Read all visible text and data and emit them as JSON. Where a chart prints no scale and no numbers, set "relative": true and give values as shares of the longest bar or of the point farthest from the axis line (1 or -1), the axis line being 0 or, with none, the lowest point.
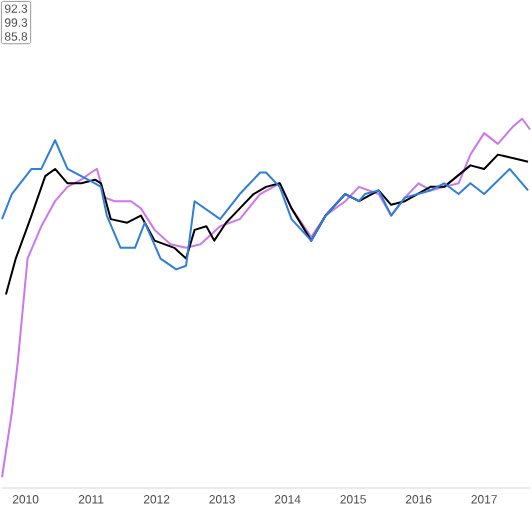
{
  "chart_data": {
    "type": "line",
    "relative": true,
    "xlim": [
      2009.64,
      2017.7
    ],
    "xticks": [
      2010,
      2011,
      2012,
      2013,
      2014,
      2015,
      2016,
      2017
    ],
    "annotations": [
      "92.3",
      "99.3",
      "85.8"
    ],
    "series": [
      {
        "color": "#cc77ee",
        "x": [
          2009.64,
          2009.79,
          2009.88,
          2010.03,
          2010.24,
          2010.45,
          2010.64,
          2010.85,
          2011.0,
          2011.09,
          2011.21,
          2011.36,
          2011.61,
          2011.76,
          2011.97,
          2012.21,
          2012.45,
          2012.67,
          2012.97,
          2013.27,
          2013.58,
          2013.88,
          2014.06,
          2014.36,
          2014.58,
          2014.88,
          2015.09,
          2015.39,
          2015.58,
          2015.79,
          2016.0,
          2016.18,
          2016.39,
          2016.61,
          2016.79,
          2017.0,
          2017.21,
          2017.45,
          2017.58,
          2017.7
        ],
        "values": [
          0,
          0.18,
          0.32,
          0.61,
          0.7,
          0.77,
          0.81,
          0.83,
          0.85,
          0.86,
          0.78,
          0.77,
          0.77,
          0.75,
          0.69,
          0.65,
          0.64,
          0.65,
          0.7,
          0.72,
          0.79,
          0.82,
          0.75,
          0.67,
          0.73,
          0.77,
          0.81,
          0.79,
          0.73,
          0.78,
          0.82,
          0.8,
          0.81,
          0.82,
          0.9,
          0.96,
          0.93,
          0.98,
          1.0,
          0.97
        ]
      },
      {
        "color": "#000000",
        "x": [
          2009.7,
          2009.85,
          2010.09,
          2010.3,
          2010.45,
          2010.64,
          2010.85,
          2011.06,
          2011.15,
          2011.3,
          2011.55,
          2011.76,
          2011.97,
          2012.27,
          2012.45,
          2012.58,
          2012.76,
          2012.88,
          2013.06,
          2013.27,
          2013.48,
          2013.67,
          2013.88,
          2014.06,
          2014.36,
          2014.58,
          2014.88,
          2015.09,
          2015.39,
          2015.58,
          2015.79,
          2016.18,
          2016.39,
          2016.79,
          2017.0,
          2017.21,
          2017.45,
          2017.67
        ],
        "values": [
          0.51,
          0.61,
          0.73,
          0.84,
          0.86,
          0.82,
          0.82,
          0.83,
          0.82,
          0.72,
          0.71,
          0.73,
          0.66,
          0.64,
          0.61,
          0.69,
          0.7,
          0.66,
          0.71,
          0.75,
          0.79,
          0.81,
          0.82,
          0.75,
          0.66,
          0.73,
          0.79,
          0.77,
          0.8,
          0.76,
          0.77,
          0.81,
          0.81,
          0.87,
          0.86,
          0.9,
          0.89,
          0.88
        ]
      },
      {
        "color": "#2f7fd8",
        "x": [
          2009.64,
          2009.79,
          2010.09,
          2010.24,
          2010.45,
          2010.64,
          2011.06,
          2011.15,
          2011.24,
          2011.45,
          2011.67,
          2011.82,
          2012.06,
          2012.3,
          2012.45,
          2012.58,
          2012.97,
          2013.27,
          2013.58,
          2013.67,
          2013.88,
          2014.06,
          2014.36,
          2014.58,
          2014.88,
          2015.09,
          2015.18,
          2015.39,
          2015.58,
          2015.79,
          2016.18,
          2016.39,
          2016.61,
          2016.79,
          2017.0,
          2017.39,
          2017.67
        ],
        "values": [
          0.72,
          0.79,
          0.86,
          0.86,
          0.94,
          0.86,
          0.82,
          0.81,
          0.73,
          0.64,
          0.64,
          0.71,
          0.61,
          0.58,
          0.59,
          0.77,
          0.72,
          0.79,
          0.85,
          0.85,
          0.81,
          0.72,
          0.66,
          0.73,
          0.79,
          0.77,
          0.79,
          0.8,
          0.73,
          0.78,
          0.8,
          0.82,
          0.79,
          0.82,
          0.79,
          0.86,
          0.8
        ]
      }
    ]
  }
}
